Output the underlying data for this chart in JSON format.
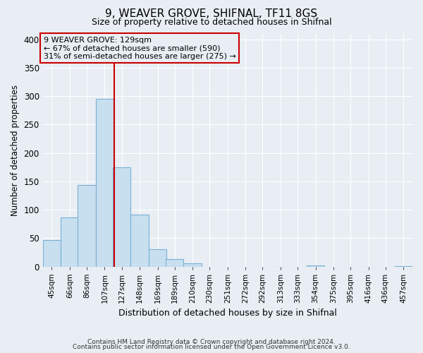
{
  "title": "9, WEAVER GROVE, SHIFNAL, TF11 8GS",
  "subtitle": "Size of property relative to detached houses in Shifnal",
  "xlabel": "Distribution of detached houses by size in Shifnal",
  "ylabel": "Number of detached properties",
  "bin_labels": [
    "45sqm",
    "66sqm",
    "86sqm",
    "107sqm",
    "127sqm",
    "148sqm",
    "169sqm",
    "189sqm",
    "210sqm",
    "230sqm",
    "251sqm",
    "272sqm",
    "292sqm",
    "313sqm",
    "333sqm",
    "354sqm",
    "375sqm",
    "395sqm",
    "416sqm",
    "436sqm",
    "457sqm"
  ],
  "bin_edges": [
    45,
    66,
    86,
    107,
    127,
    148,
    169,
    189,
    210,
    230,
    251,
    272,
    292,
    313,
    333,
    354,
    375,
    395,
    416,
    436,
    457
  ],
  "bar_heights": [
    47,
    86,
    144,
    295,
    175,
    91,
    30,
    13,
    5,
    0,
    0,
    0,
    0,
    0,
    0,
    2,
    0,
    0,
    0,
    0,
    1
  ],
  "bar_color": "#c8dff0",
  "bar_edge_color": "#7ab0d4",
  "property_line_x": 129,
  "ylim": [
    0,
    410
  ],
  "yticks": [
    0,
    50,
    100,
    150,
    200,
    250,
    300,
    350,
    400
  ],
  "annotation_line1": "9 WEAVER GROVE: 129sqm",
  "annotation_line2": "← 67% of detached houses are smaller (590)",
  "annotation_line3": "31% of semi-detached houses are larger (275) →",
  "annotation_box_color": "#cc0000",
  "footer_line1": "Contains HM Land Registry data © Crown copyright and database right 2024.",
  "footer_line2": "Contains public sector information licensed under the Open Government Licence v3.0.",
  "background_color": "#e8eef4",
  "plot_bg_color": "#e8eef4",
  "grid_color": "#ffffff"
}
